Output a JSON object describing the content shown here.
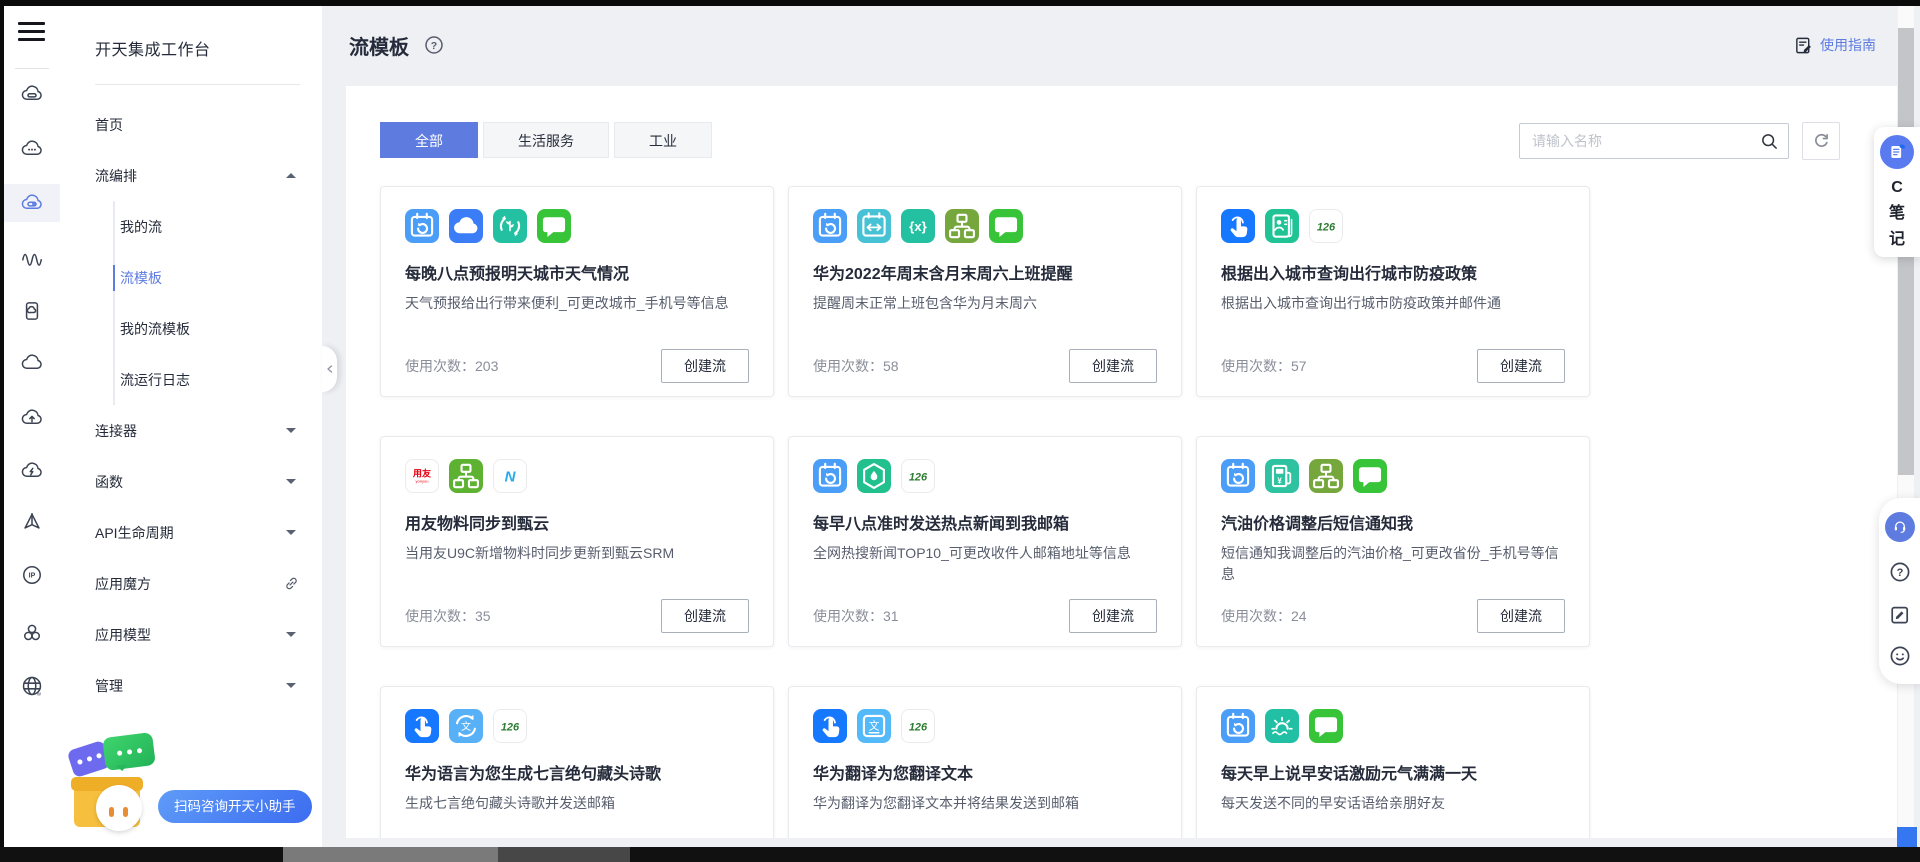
{
  "colors": {
    "accent": "#5e7ce0",
    "text_dark": "#252b3a",
    "text_gray": "#8a8e99",
    "page_bg": "#eef0f4",
    "tab_active_bg": "#5e7ce0",
    "assistant_pill": "#3c6cf0"
  },
  "rail": {
    "icons": [
      {
        "id": "cloud-server-icon"
      },
      {
        "id": "cloud-dots-icon"
      },
      {
        "id": "flow-cloud-icon",
        "active": true
      },
      {
        "id": "waves-icon"
      },
      {
        "id": "device-cloud-icon"
      },
      {
        "id": "cloud-icon"
      },
      {
        "id": "cloud-upload-icon"
      },
      {
        "id": "cloud-flash-icon"
      },
      {
        "id": "prism-icon"
      },
      {
        "id": "ip-icon"
      },
      {
        "id": "cluster-icon"
      },
      {
        "id": "globe-icon"
      }
    ]
  },
  "sidebar": {
    "title": "开天集成工作台",
    "items": [
      {
        "id": "home",
        "label": "首页",
        "level": 1
      },
      {
        "id": "flow-orchestration",
        "label": "流编排",
        "level": 1,
        "arrow": "up"
      },
      {
        "id": "my-flows",
        "label": "我的流",
        "level": 2
      },
      {
        "id": "flow-templates",
        "label": "流模板",
        "level": 2,
        "active": true
      },
      {
        "id": "my-flow-templates",
        "label": "我的流模板",
        "level": 2
      },
      {
        "id": "flow-run-logs",
        "label": "流运行日志",
        "level": 2
      },
      {
        "id": "connectors",
        "label": "连接器",
        "level": 1,
        "arrow": "down"
      },
      {
        "id": "functions",
        "label": "函数",
        "level": 1,
        "arrow": "down"
      },
      {
        "id": "api-lifecycle",
        "label": "API生命周期",
        "level": 1,
        "arrow": "down"
      },
      {
        "id": "app-cube",
        "label": "应用魔方",
        "level": 1,
        "icon": "link"
      },
      {
        "id": "app-model",
        "label": "应用模型",
        "level": 1,
        "arrow": "down"
      },
      {
        "id": "management",
        "label": "管理",
        "level": 1,
        "arrow": "down"
      }
    ],
    "assistant_label": "扫码咨询开天小助手"
  },
  "header": {
    "title": "流模板",
    "guide_label": "使用指南"
  },
  "toolbar": {
    "tabs": [
      {
        "id": "all",
        "label": "全部",
        "active": true
      },
      {
        "id": "life-services",
        "label": "生活服务",
        "active": false
      },
      {
        "id": "industry",
        "label": "工业",
        "active": false
      }
    ],
    "search_placeholder": "请输入名称"
  },
  "icon_colors": {
    "timer-schedule-icon": "#4b9ef8",
    "weather-cloud-icon": "#3b7cf7",
    "service-cycle-icon": "#23c1a2",
    "sms-message-icon": "#38c438",
    "date-range-icon": "#47c2d4",
    "variable-braces-icon": "#23c1a2",
    "flow-branch-icon": "#76a73d",
    "flow-branch-bright-icon": "#5db231",
    "manual-trigger-icon": "#1677ff",
    "health-code-icon": "#1fc394",
    "mail-126-icon": "#ffffff",
    "yonyou-icon": "#ffffff",
    "zhenyun-icon": "#ffffff",
    "news-hexagon-icon": "#21c08c",
    "fuel-price-icon": "#2ec2a0",
    "language-generate-icon": "#58b0f7",
    "translate-icon": "#53b9f8",
    "morning-sunrise-icon": "#21c0a5"
  },
  "cards": [
    {
      "title": "每晚八点预报明天城市天气情况",
      "desc": "天气预报给出行带来便利_可更改城市_手机号等信息",
      "usage_label": "使用次数：",
      "usage_count": "203",
      "action": "创建流",
      "icons": [
        "timer-schedule-icon",
        "weather-cloud-icon",
        "service-cycle-icon",
        "sms-message-icon"
      ]
    },
    {
      "title": "华为2022年周末含月末周六上班提醒",
      "desc": "提醒周末正常上班包含华为月末周六",
      "usage_label": "使用次数：",
      "usage_count": "58",
      "action": "创建流",
      "icons": [
        "timer-schedule-icon",
        "date-range-icon",
        "variable-braces-icon",
        "flow-branch-icon",
        "sms-message-icon"
      ]
    },
    {
      "title": "根据出入城市查询出行城市防疫政策",
      "desc": "根据出入城市查询出行城市防疫政策并邮件通",
      "usage_label": "使用次数：",
      "usage_count": "57",
      "action": "创建流",
      "icons": [
        "manual-trigger-icon",
        "health-code-icon",
        "mail-126-icon"
      ]
    },
    {
      "title": "用友物料同步到甄云",
      "desc": "当用友U9C新增物料时同步更新到甄云SRM",
      "usage_label": "使用次数：",
      "usage_count": "35",
      "action": "创建流",
      "icons": [
        "yonyou-icon",
        "flow-branch-bright-icon",
        "zhenyun-icon"
      ]
    },
    {
      "title": "每早八点准时发送热点新闻到我邮箱",
      "desc": "全网热搜新闻TOP10_可更改收件人邮箱地址等信息",
      "usage_label": "使用次数：",
      "usage_count": "31",
      "action": "创建流",
      "icons": [
        "timer-schedule-icon",
        "news-hexagon-icon",
        "mail-126-icon"
      ]
    },
    {
      "title": "汽油价格调整后短信通知我",
      "desc": "短信通知我调整后的汽油价格_可更改省份_手机号等信息",
      "usage_label": "使用次数：",
      "usage_count": "24",
      "action": "创建流",
      "icons": [
        "timer-schedule-icon",
        "fuel-price-icon",
        "flow-branch-icon",
        "sms-message-icon"
      ]
    },
    {
      "title": "华为语言为您生成七言绝句藏头诗歌",
      "desc": "生成七言绝句藏头诗歌并发送邮箱",
      "usage_label": null,
      "usage_count": null,
      "action": null,
      "icons": [
        "manual-trigger-icon",
        "language-generate-icon",
        "mail-126-icon"
      ]
    },
    {
      "title": "华为翻译为您翻译文本",
      "desc": "华为翻译为您翻译文本并将结果发送到邮箱",
      "usage_label": null,
      "usage_count": null,
      "action": null,
      "icons": [
        "manual-trigger-icon",
        "translate-icon",
        "mail-126-icon"
      ]
    },
    {
      "title": "每天早上说早安话激励元气满满一天",
      "desc": "每天发送不同的早安话语给亲朋好友",
      "usage_label": null,
      "usage_count": null,
      "action": null,
      "icons": [
        "timer-schedule-icon",
        "morning-sunrise-icon",
        "sms-message-icon"
      ]
    }
  ],
  "widgets": {
    "notes_label": "C笔记",
    "float_icons": [
      "headset-icon",
      "help-circle-icon",
      "survey-icon",
      "feedback-smiley-icon"
    ]
  }
}
